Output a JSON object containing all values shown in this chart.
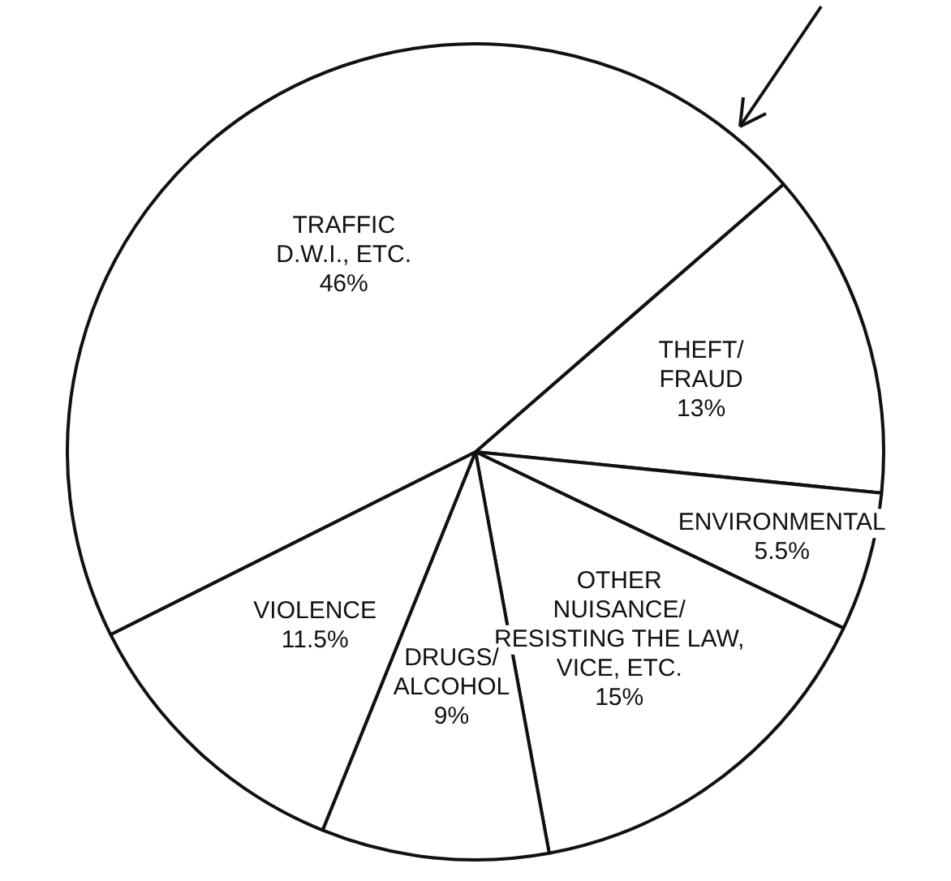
{
  "chart_data": {
    "type": "pie",
    "categories": [
      "THEFT/\nFRAUD",
      "ENVIRONMENTAL",
      "OTHER\nNUISANCE/\nRESISTING THE LAW,\nVICE, ETC.",
      "DRUGS/\nALCOHOL",
      "VIOLENCE",
      "TRAFFIC\nD.W.I., ETC."
    ],
    "values": [
      13,
      5.5,
      15,
      9,
      11.5,
      46
    ],
    "value_labels": [
      "13%",
      "5.5%",
      "15%",
      "9%",
      "11.5%",
      "46%"
    ],
    "colors": [
      "#ffffff",
      "#ffffff",
      "#ffffff",
      "#ffffff",
      "#ffffff",
      "#ffffff"
    ]
  }
}
